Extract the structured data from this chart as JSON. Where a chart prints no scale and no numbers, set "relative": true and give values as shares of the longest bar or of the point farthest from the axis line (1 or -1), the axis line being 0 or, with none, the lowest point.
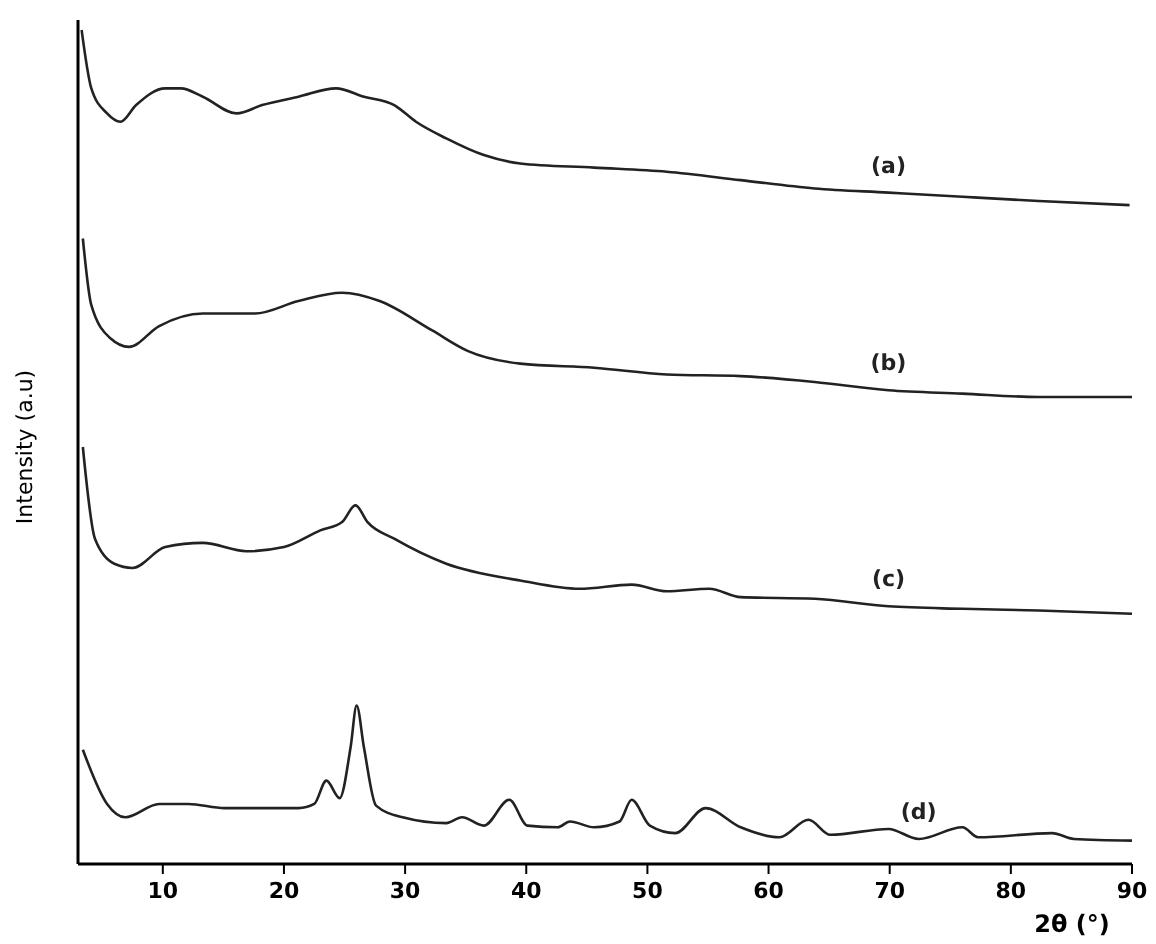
{
  "chart_data": {
    "type": "line",
    "xlabel": "2θ (°)",
    "ylabel": "Intensity (a.u)",
    "relative": true,
    "xlim": [
      3,
      90
    ],
    "xticks": [
      10,
      20,
      30,
      40,
      50,
      60,
      70,
      80,
      90
    ],
    "tick_labels": "x",
    "marker": "none",
    "line_style": "solid",
    "series": [
      {
        "name": "(a)",
        "color": "#222222",
        "x": [
          3.3,
          4.1,
          5.4,
          6.5,
          7.8,
          10.2,
          11.5,
          13.3,
          16.1,
          18.2,
          21.2,
          24.3,
          26.6,
          29.1,
          30.9,
          33.4,
          36.5,
          39.5,
          45.6,
          51.6,
          57.7,
          63.8,
          69.9,
          76.0,
          82.3,
          89.8
        ],
        "values": [
          1.0,
          0.93,
          0.9,
          0.89,
          0.91,
          0.93,
          0.93,
          0.92,
          0.9,
          0.91,
          0.92,
          0.93,
          0.92,
          0.91,
          0.89,
          0.87,
          0.85,
          0.84,
          0.835,
          0.83,
          0.82,
          0.81,
          0.805,
          0.8,
          0.795,
          0.79
        ]
      },
      {
        "name": "(b)",
        "color": "#222222",
        "x": [
          3.4,
          4.1,
          5.7,
          7.2,
          9.7,
          13.3,
          17.6,
          21.2,
          24.8,
          27.9,
          32.2,
          35.2,
          39.5,
          45.6,
          51.6,
          57.7,
          63.8,
          69.9,
          76.0,
          82.3,
          90
        ],
        "values": [
          0.75,
          0.67,
          0.63,
          0.62,
          0.645,
          0.66,
          0.66,
          0.675,
          0.685,
          0.675,
          0.64,
          0.615,
          0.6,
          0.595,
          0.587,
          0.585,
          0.578,
          0.568,
          0.564,
          0.56,
          0.56
        ]
      },
      {
        "name": "(c)",
        "color": "#222222",
        "x": [
          3.4,
          4.4,
          6.0,
          7.5,
          10.2,
          13.3,
          16.9,
          20.0,
          23.0,
          24.8,
          25.9,
          26.9,
          29.1,
          33.4,
          39.5,
          44.4,
          48.7,
          51.6,
          55.1,
          57.7,
          63.8,
          69.9,
          76.0,
          82.3,
          90
        ],
        "values": [
          0.5,
          0.39,
          0.36,
          0.355,
          0.38,
          0.385,
          0.375,
          0.38,
          0.4,
          0.41,
          0.43,
          0.41,
          0.39,
          0.36,
          0.34,
          0.33,
          0.335,
          0.327,
          0.33,
          0.32,
          0.318,
          0.309,
          0.306,
          0.304,
          0.3
        ]
      },
      {
        "name": "(d)",
        "color": "#222222",
        "x": [
          3.4,
          5.4,
          6.9,
          9.7,
          12.1,
          15.1,
          21.2,
          22.5,
          23.5,
          24.6,
          25.5,
          26.0,
          26.6,
          27.6,
          29.8,
          33.4,
          34.7,
          36.5,
          38.6,
          40.1,
          42.6,
          43.6,
          45.6,
          47.7,
          48.7,
          50.2,
          52.3,
          54.8,
          57.7,
          60.9,
          63.3,
          65.1,
          69.9,
          72.4,
          76.0,
          77.3,
          83.4,
          85.2,
          90
        ],
        "values": [
          0.137,
          0.072,
          0.056,
          0.072,
          0.072,
          0.067,
          0.067,
          0.072,
          0.1,
          0.079,
          0.14,
          0.19,
          0.14,
          0.07,
          0.056,
          0.049,
          0.056,
          0.046,
          0.077,
          0.046,
          0.044,
          0.051,
          0.044,
          0.051,
          0.077,
          0.046,
          0.037,
          0.067,
          0.044,
          0.032,
          0.053,
          0.035,
          0.042,
          0.03,
          0.044,
          0.032,
          0.037,
          0.03,
          0.028
        ]
      }
    ]
  }
}
